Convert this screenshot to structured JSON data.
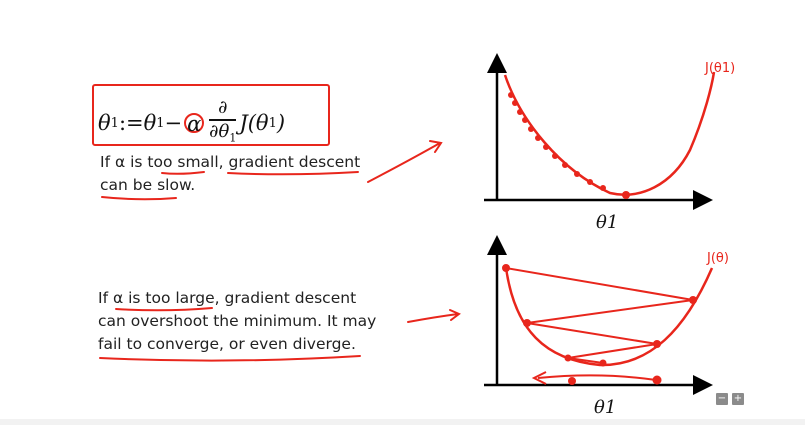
{
  "formula": {
    "lhs": "θ",
    "lhs_sub": "1",
    "assign": " := ",
    "rhs_var": "θ",
    "rhs_sub": "1",
    "minus": " − ",
    "alpha": "α",
    "frac_num": "∂",
    "frac_den": "∂θ",
    "frac_den_sub": "1",
    "cost": "J(θ",
    "cost_sub": "1",
    "cost_close": ")"
  },
  "captions": {
    "small_line1": "If α is too small, gradient descent",
    "small_line2": "can be slow.",
    "large_line1": "If α is too large, gradient descent",
    "large_line2": "can overshoot the minimum. It may",
    "large_line3": "fail to converge, or even diverge."
  },
  "plots": {
    "top_axis_label": "θ1",
    "top_curve_label": "J(θ1)",
    "bottom_axis_label": "θ1",
    "bottom_curve_label": "J(θ)"
  },
  "controls": {
    "minus": "−",
    "plus": "+"
  },
  "colors": {
    "ink": "#e8261c",
    "text": "#222222",
    "axis": "#000000"
  }
}
